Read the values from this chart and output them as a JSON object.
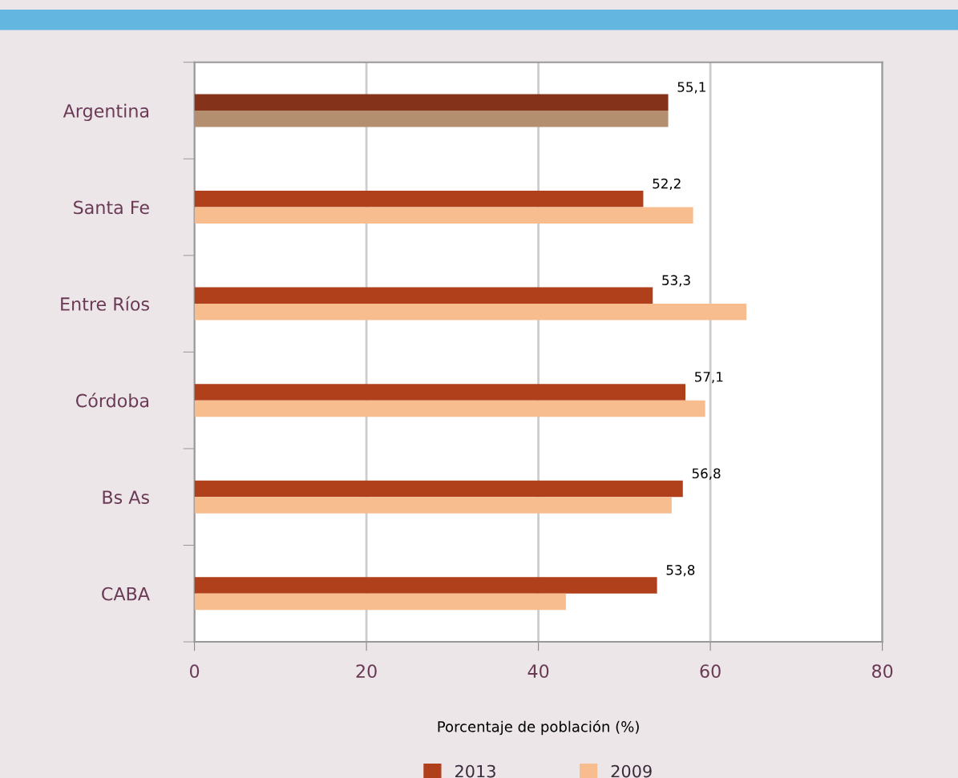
{
  "chart_data": {
    "type": "bar",
    "orientation": "horizontal",
    "xlabel": "Porcentaje de población (%)",
    "categories": [
      "Argentina",
      "Santa Fe",
      "Entre Ríos",
      "Córdoba",
      "Bs As",
      "CABA"
    ],
    "series": [
      {
        "name": "2013",
        "color": "#b0401b",
        "colors": [
          "#843219",
          "#b0401b",
          "#b0401b",
          "#b0401b",
          "#b0401b",
          "#b0401b"
        ],
        "values": [
          55.1,
          52.2,
          53.3,
          57.1,
          56.8,
          53.8
        ],
        "value_labels": [
          "55,1",
          "52,2",
          "53,3",
          "57,1",
          "56,8",
          "53,8"
        ]
      },
      {
        "name": "2009",
        "color": "#f7bd8f",
        "colors": [
          "#b38f70",
          "#f7bd8f",
          "#f7bd8f",
          "#f7bd8f",
          "#f7bd8f",
          "#f7bd8f"
        ],
        "values": [
          55.1,
          58.0,
          64.2,
          59.4,
          55.5,
          43.2
        ]
      }
    ],
    "xlim": [
      0,
      80
    ],
    "xticks": [
      0,
      20,
      40,
      60,
      80
    ],
    "grid": "x",
    "legend": "bottom"
  }
}
